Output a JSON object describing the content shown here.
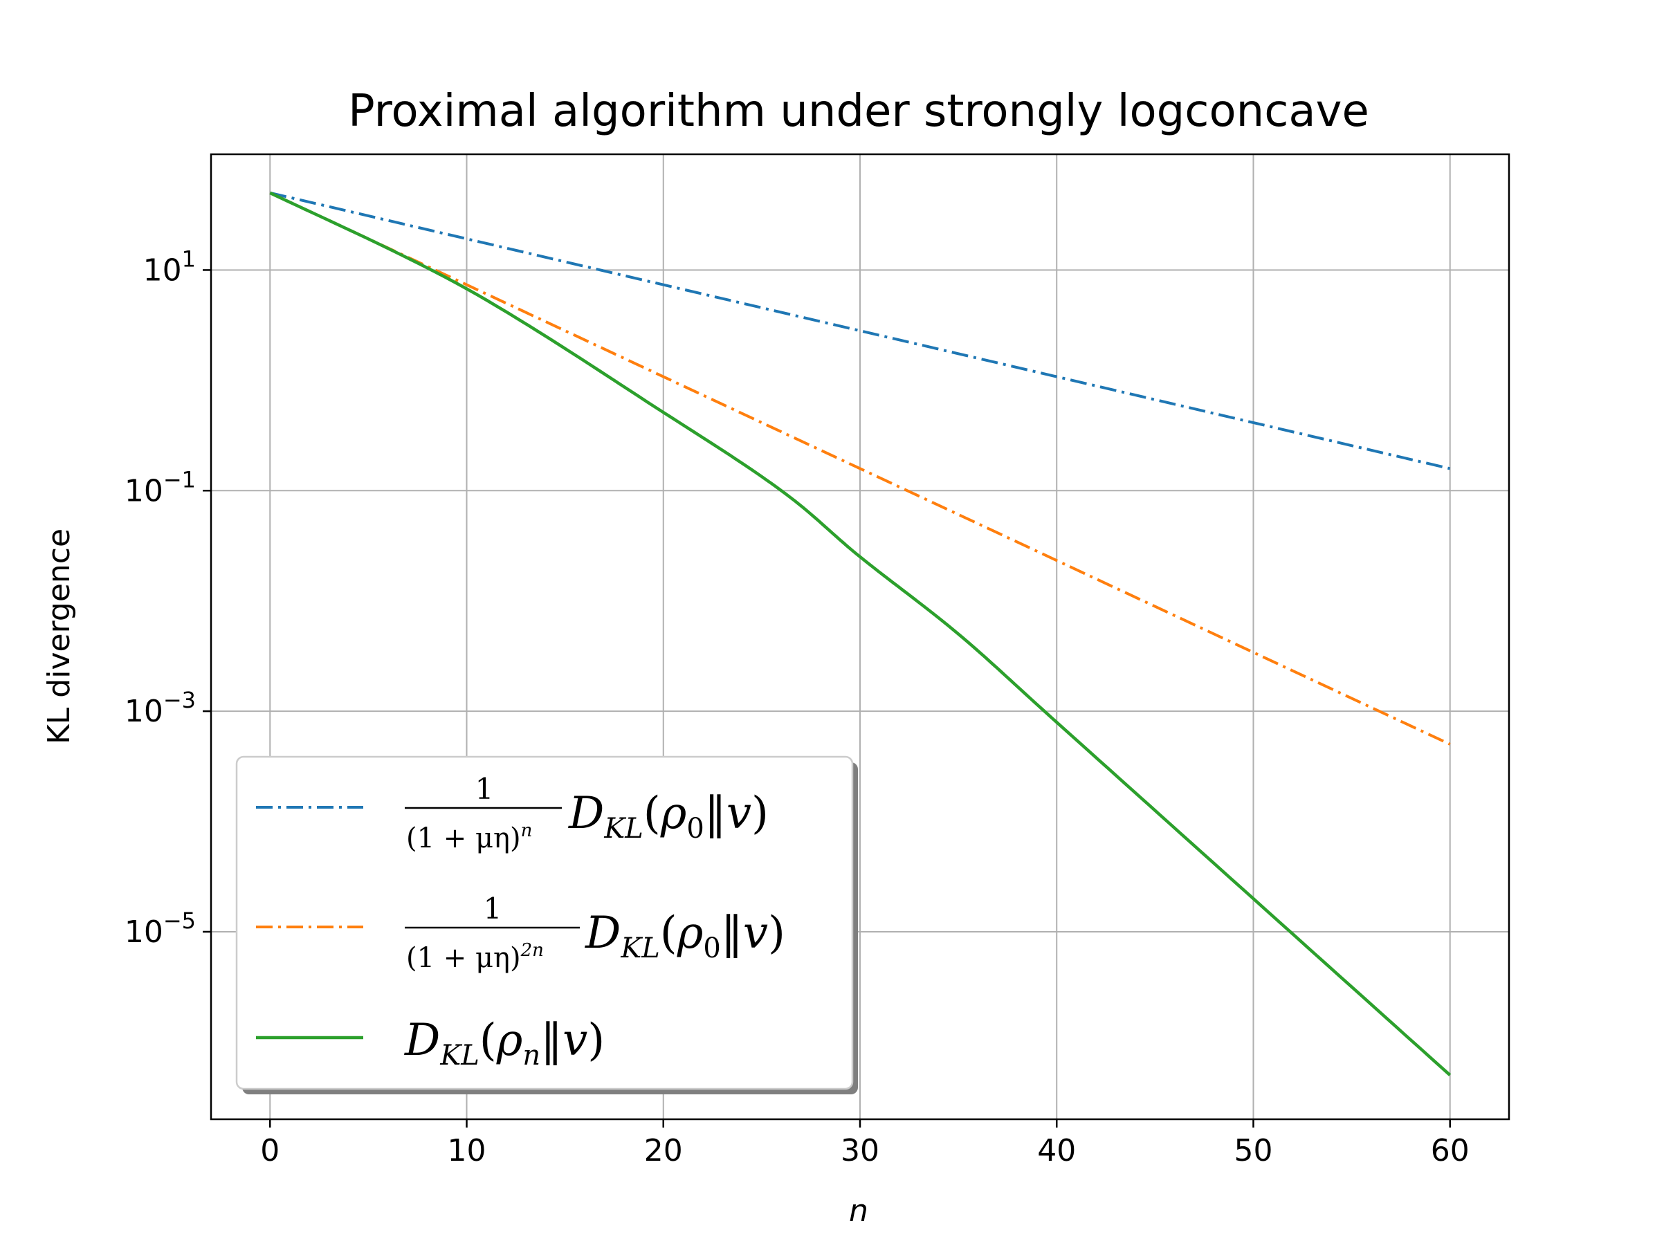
{
  "chart_data": {
    "type": "line",
    "title": "Proximal algorithm under strongly logconcave",
    "xlabel": "n",
    "ylabel": "KL divergence",
    "yscale": "log",
    "xlim": [
      -3,
      63
    ],
    "ylim_log10": [
      -6.7,
      2.05
    ],
    "xticks": [
      0,
      10,
      20,
      30,
      40,
      50,
      60
    ],
    "yticks": [
      {
        "exp": 1,
        "base": "10",
        "sup": "1"
      },
      {
        "exp": -1,
        "base": "10",
        "sup": "−1"
      },
      {
        "exp": -3,
        "base": "10",
        "sup": "−3"
      },
      {
        "exp": -5,
        "base": "10",
        "sup": "−5"
      }
    ],
    "grid": true,
    "legend_position": "lower-left",
    "series": [
      {
        "name": "1/(1+μη)^n D_KL(ρ0‖v)",
        "color": "#1f77b4",
        "style": "dashdot",
        "x": [
          0,
          60
        ],
        "log10_y": [
          1.7,
          -0.8
        ]
      },
      {
        "name": "1/(1+μη)^{2n} D_KL(ρ0‖v)",
        "color": "#ff7f0e",
        "style": "dashdot",
        "x": [
          0,
          60
        ],
        "log10_y": [
          1.7,
          -3.3
        ]
      },
      {
        "name": "D_KL(ρn‖v)",
        "color": "#2ca02c",
        "style": "solid",
        "x": [
          0,
          10,
          20,
          26,
          30,
          35,
          40,
          50,
          60
        ],
        "log10_y": [
          1.7,
          0.83,
          -0.29,
          -1.0,
          -1.6,
          -2.3,
          -3.1,
          -4.7,
          -6.3
        ]
      }
    ],
    "legend": {
      "frac_numerator": "1",
      "frac_den_1": "(1 + μη)",
      "frac_den_1_sup": "n",
      "frac_den_2": "(1 + μη)",
      "frac_den_2_sup": "2n",
      "D": "D",
      "KL": "KL",
      "open": "(",
      "rho": "ρ",
      "sub0": "0",
      "subn": "n",
      "norm": "‖",
      "v": "v",
      "close": ")"
    }
  }
}
